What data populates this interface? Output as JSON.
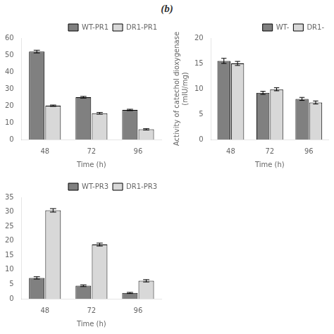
{
  "title": "(b)",
  "chart_data": [
    {
      "type": "bar",
      "xlabel": "Time (h)",
      "categories": [
        "48",
        "72",
        "96"
      ],
      "series": [
        {
          "name": "WT-PR1",
          "color": "#808080",
          "values": [
            52,
            25,
            17.5
          ],
          "errors": [
            0.8,
            0.5,
            0.4
          ]
        },
        {
          "name": "DR1-PR1",
          "color": "#d8d8d8",
          "values": [
            20,
            15.5,
            6
          ],
          "errors": [
            0.4,
            0.5,
            0.4
          ]
        }
      ],
      "ylim": [
        0,
        60
      ],
      "yticks": [
        0,
        10,
        20,
        30,
        40,
        50,
        60
      ],
      "grid": false,
      "legend": "upper right"
    },
    {
      "type": "bar",
      "xlabel": "Time (h)",
      "ylabel": "Activity of catechol dioxygenase\n(mIU/mg)",
      "categories": [
        "48",
        "72",
        "96"
      ],
      "series": [
        {
          "name": "WT-",
          "color": "#808080",
          "values": [
            15.5,
            9.2,
            8.0
          ],
          "errors": [
            0.5,
            0.3,
            0.3
          ]
        },
        {
          "name": "DR1-",
          "color": "#d8d8d8",
          "values": [
            15.0,
            9.9,
            7.3
          ],
          "errors": [
            0.4,
            0.3,
            0.3
          ]
        }
      ],
      "ylim": [
        0,
        20
      ],
      "yticks": [
        0,
        5,
        10,
        15,
        20
      ],
      "grid": false,
      "legend": "upper right"
    },
    {
      "type": "bar",
      "xlabel": "Time (h)",
      "categories": [
        "48",
        "72",
        "96"
      ],
      "series": [
        {
          "name": "WT-PR3",
          "color": "#808080",
          "values": [
            7.2,
            4.5,
            2.0
          ],
          "errors": [
            0.4,
            0.3,
            0.2
          ]
        },
        {
          "name": "DR1-PR3",
          "color": "#d8d8d8",
          "values": [
            30.5,
            18.7,
            6.2
          ],
          "errors": [
            0.6,
            0.5,
            0.4
          ]
        }
      ],
      "ylim": [
        0,
        35
      ],
      "yticks": [
        0,
        5,
        10,
        15,
        20,
        25,
        30,
        35
      ],
      "grid": false,
      "legend": "upper right"
    }
  ]
}
